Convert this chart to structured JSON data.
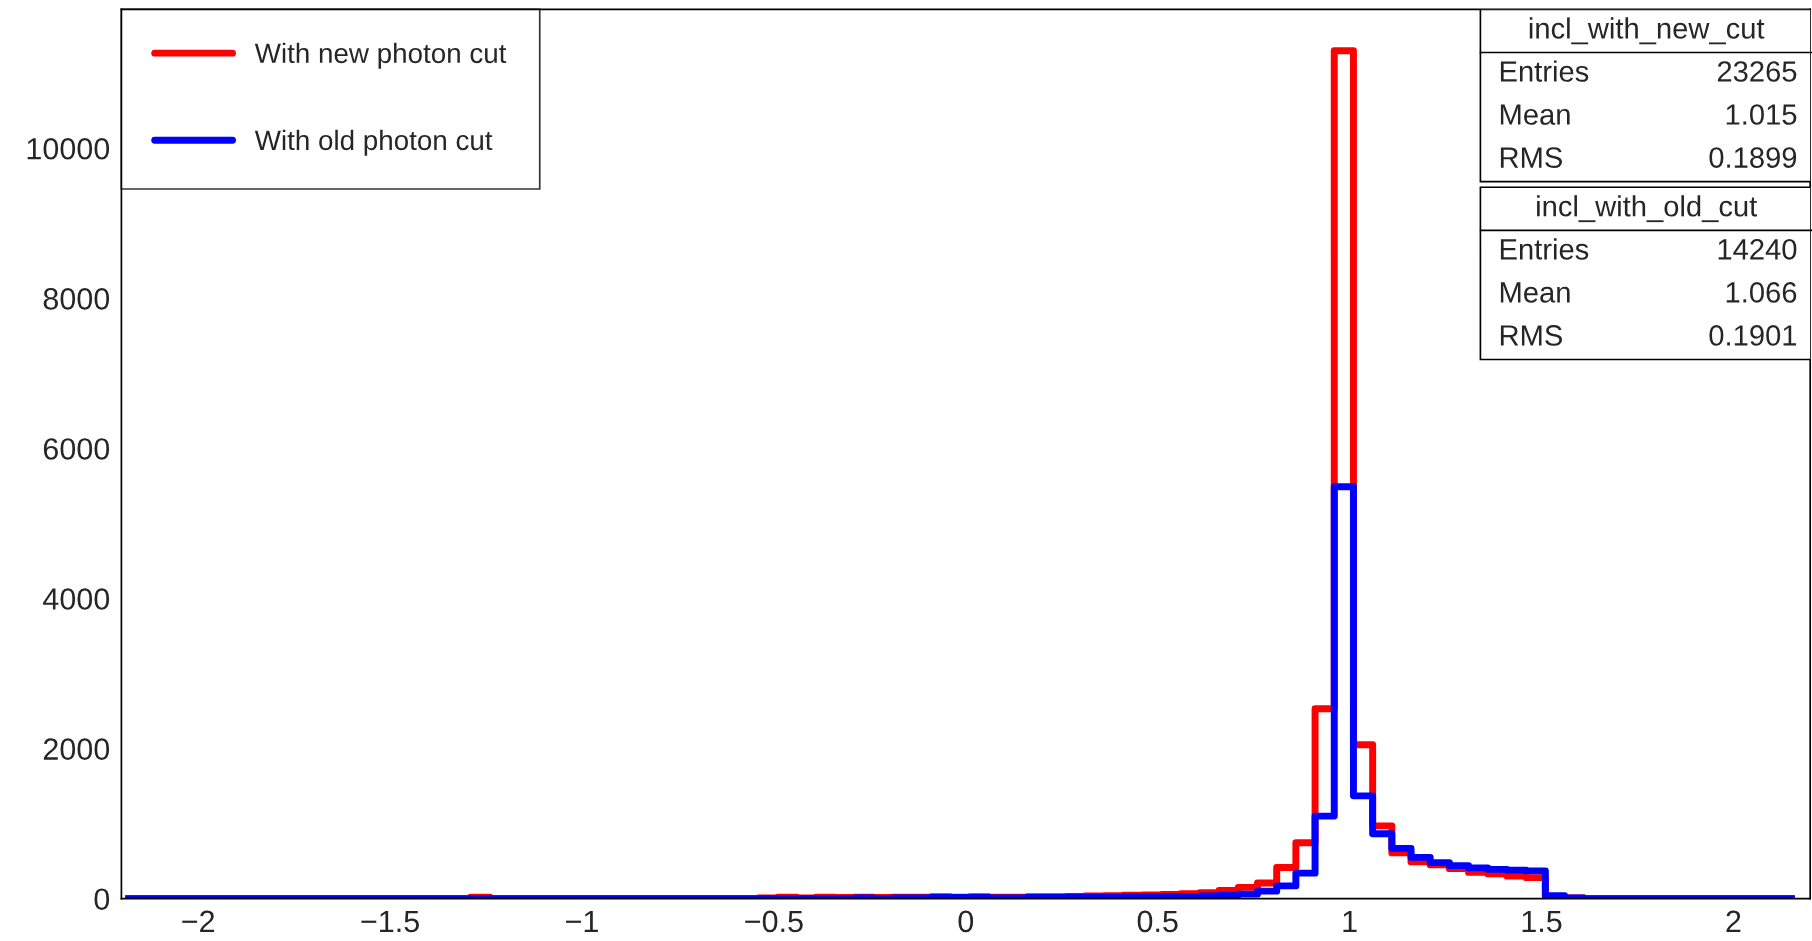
{
  "chart_data": {
    "type": "histogram",
    "bins": [
      -2.19,
      -2.14,
      -2.09,
      -2.04,
      -1.99,
      -1.94,
      -1.89,
      -1.84,
      -1.79,
      -1.74,
      -1.69,
      -1.64,
      -1.59,
      -1.54,
      -1.49,
      -1.44,
      -1.39,
      -1.34,
      -1.29,
      -1.24,
      -1.19,
      -1.14,
      -1.09,
      -1.04,
      -0.99,
      -0.94,
      -0.89,
      -0.84,
      -0.79,
      -0.74,
      -0.69,
      -0.64,
      -0.59,
      -0.54,
      -0.49,
      -0.44,
      -0.39,
      -0.34,
      -0.29,
      -0.24,
      -0.19,
      -0.14,
      -0.09,
      -0.04,
      0.01,
      0.06,
      0.11,
      0.16,
      0.21,
      0.26,
      0.31,
      0.36,
      0.41,
      0.46,
      0.51,
      0.56,
      0.61,
      0.66,
      0.71,
      0.76,
      0.81,
      0.86,
      0.91,
      0.96,
      1.01,
      1.06,
      1.11,
      1.16,
      1.21,
      1.26,
      1.31,
      1.36,
      1.41,
      1.46,
      1.51,
      1.56,
      1.61,
      1.66,
      1.71,
      1.76,
      1.81,
      1.86,
      1.91,
      1.96,
      2.01,
      2.06,
      2.11,
      2.16
    ],
    "series": [
      {
        "name": "With new photon cut",
        "color": "#ff0000",
        "values": [
          0,
          0,
          0,
          0,
          0,
          0,
          0,
          0,
          0,
          0,
          0,
          0,
          0,
          0,
          0,
          0,
          0,
          0,
          20,
          0,
          0,
          0,
          0,
          0,
          0,
          0,
          0,
          0,
          0,
          0,
          0,
          0,
          0,
          10,
          20,
          10,
          20,
          15,
          20,
          15,
          20,
          20,
          25,
          20,
          25,
          20,
          20,
          25,
          25,
          30,
          35,
          40,
          45,
          50,
          55,
          65,
          80,
          110,
          150,
          208,
          416,
          744,
          2530,
          11300,
          2050,
          970,
          610,
          490,
          450,
          400,
          350,
          330,
          300,
          280,
          30,
          10,
          0,
          0,
          0,
          0,
          0,
          0,
          0,
          0,
          0,
          0,
          0
        ]
      },
      {
        "name": "With old photon cut",
        "color": "#0000ff",
        "values": [
          0,
          0,
          0,
          0,
          0,
          0,
          0,
          0,
          0,
          0,
          0,
          0,
          0,
          0,
          0,
          0,
          0,
          0,
          0,
          0,
          0,
          0,
          0,
          0,
          0,
          0,
          0,
          0,
          0,
          0,
          0,
          0,
          0,
          0,
          0,
          0,
          0,
          0,
          10,
          0,
          10,
          10,
          15,
          15,
          15,
          10,
          10,
          15,
          15,
          20,
          20,
          20,
          25,
          25,
          30,
          30,
          35,
          45,
          60,
          100,
          170,
          340,
          1100,
          5490,
          1370,
          865,
          670,
          550,
          480,
          440,
          410,
          390,
          380,
          370,
          40,
          10,
          0,
          0,
          0,
          0,
          0,
          0,
          0,
          0,
          0,
          0,
          0
        ]
      }
    ],
    "xlim": [
      -2.2,
      2.2
    ],
    "xticks": [
      {
        "value": -2,
        "label": "−2"
      },
      {
        "value": -1.5,
        "label": "−1.5"
      },
      {
        "value": -1,
        "label": "−1"
      },
      {
        "value": -0.5,
        "label": "−0.5"
      },
      0,
      0.5,
      1,
      1.5,
      2
    ],
    "ylim": [
      0,
      11850
    ],
    "yticks": [
      0,
      2000,
      4000,
      6000,
      8000,
      10000
    ],
    "grid": false,
    "legend": "top left",
    "annotations": [
      "incl_with_new_cut",
      "Entries",
      "23265",
      "Mean",
      "1.015",
      "RMS",
      "0.1899",
      "incl_with_old_cut",
      "Entries",
      "14240",
      "Mean",
      "1.066",
      "RMS",
      "0.1901"
    ]
  }
}
